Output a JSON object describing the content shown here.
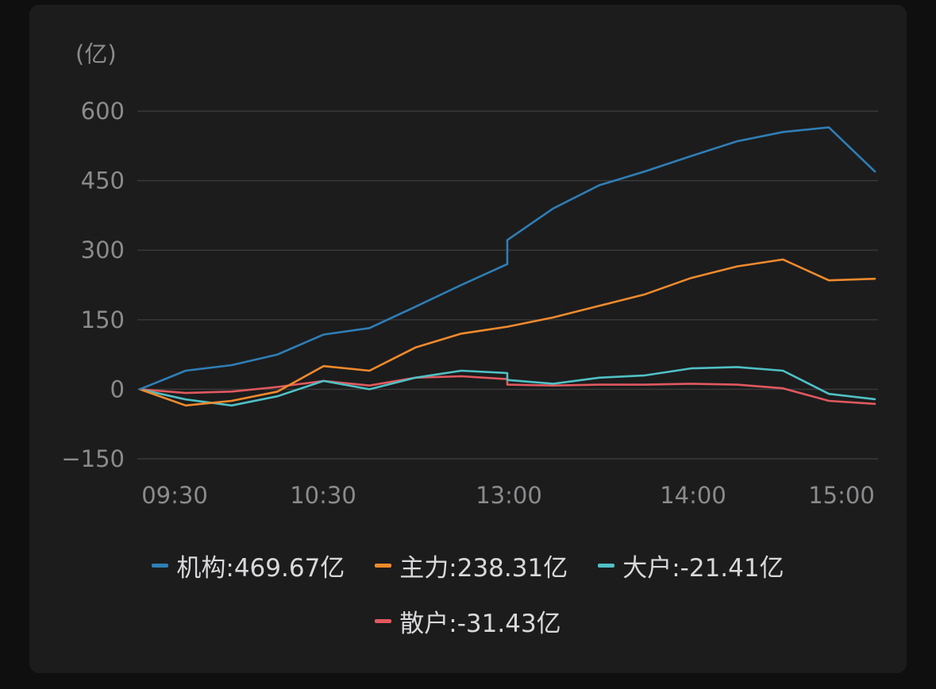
{
  "chart_data": {
    "type": "line",
    "unit_label": "(亿)",
    "ylim": [
      -150,
      600
    ],
    "yticks": [
      600,
      450,
      300,
      150,
      0,
      -150
    ],
    "x_ticks": [
      "09:30",
      "10:30",
      "13:00",
      "14:00",
      "15:00"
    ],
    "grid": true,
    "legend_position": "bottom",
    "x": [
      "09:30",
      "09:45",
      "10:00",
      "10:15",
      "10:30",
      "10:45",
      "11:00",
      "11:15",
      "11:30",
      "13:00",
      "13:15",
      "13:30",
      "13:45",
      "14:00",
      "14:15",
      "14:30",
      "14:45",
      "15:00"
    ],
    "series": [
      {
        "name": "机构",
        "legend": "机构:469.67亿",
        "color": "#2f7eb5",
        "values": [
          0,
          40,
          52,
          75,
          118,
          132,
          178,
          225,
          270,
          322,
          390,
          440,
          470,
          503,
          535,
          555,
          565,
          469.67
        ]
      },
      {
        "name": "主力",
        "legend": "主力:238.31亿",
        "color": "#ef8a2c",
        "values": [
          0,
          -35,
          -25,
          -5,
          50,
          40,
          90,
          120,
          135,
          135,
          155,
          180,
          205,
          240,
          265,
          280,
          235,
          238.31
        ]
      },
      {
        "name": "大户",
        "legend": "大户:-21.41亿",
        "color": "#4fc1c4",
        "values": [
          0,
          -22,
          -35,
          -15,
          18,
          0,
          25,
          40,
          35,
          20,
          12,
          25,
          30,
          45,
          48,
          40,
          -10,
          -21.41
        ]
      },
      {
        "name": "散户",
        "legend": "散户:-31.43亿",
        "color": "#e0595f",
        "values": [
          0,
          -8,
          -5,
          5,
          18,
          8,
          25,
          28,
          22,
          10,
          8,
          10,
          10,
          12,
          10,
          2,
          -25,
          -31.43
        ]
      }
    ]
  }
}
